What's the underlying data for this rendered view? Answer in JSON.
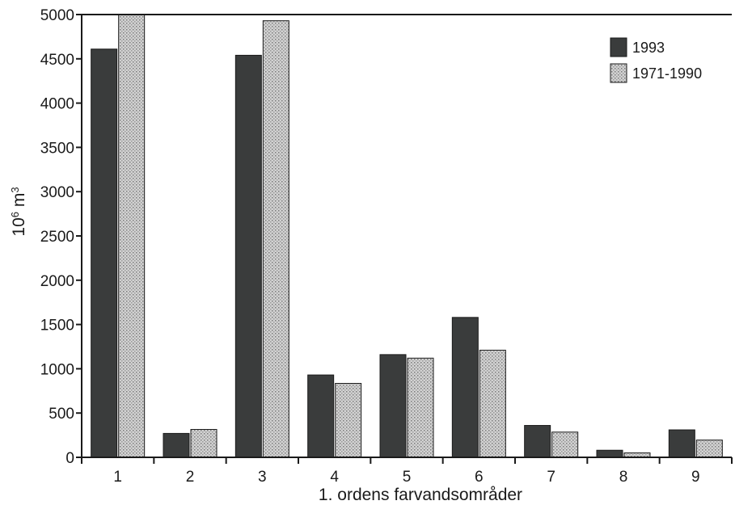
{
  "chart_data": {
    "type": "bar",
    "categories": [
      "1",
      "2",
      "3",
      "4",
      "5",
      "6",
      "7",
      "8",
      "9"
    ],
    "series": [
      {
        "name": "1993",
        "values": [
          4610,
          270,
          4540,
          930,
          1160,
          1580,
          360,
          80,
          310
        ],
        "color": "#3a3c3c"
      },
      {
        "name": "1971-1990",
        "values": [
          5000,
          315,
          4930,
          835,
          1120,
          1210,
          285,
          50,
          195
        ],
        "color": "#c8c8c8"
      }
    ],
    "title": "",
    "xlabel": "1. ordens farvandsområder",
    "ylabel_base": "10",
    "ylabel_exp1": "6",
    "ylabel_unit": " m",
    "ylabel_exp2": "3",
    "ylim": [
      0,
      5000
    ],
    "yticks": [
      "0",
      "500",
      "1000",
      "1500",
      "2000",
      "2500",
      "3000",
      "3500",
      "4000",
      "4500",
      "5000"
    ],
    "grid": false,
    "legend_position": "top-right"
  }
}
